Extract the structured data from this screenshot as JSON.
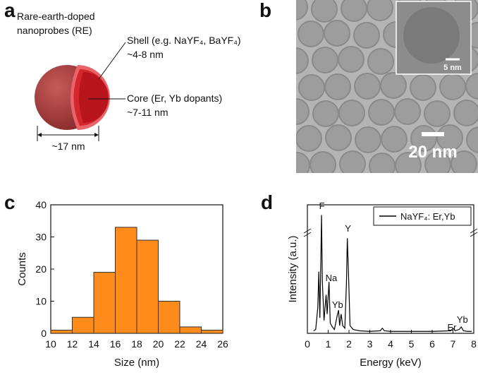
{
  "panels": [
    "a",
    "b",
    "c",
    "d"
  ],
  "diagram": {
    "title_lines": [
      "Rare-earth-doped",
      "nanoprobes (RE)"
    ],
    "shell": [
      "Shell (e.g. NaYF₄, BaYF₄)",
      "~4-8 nm"
    ],
    "core": [
      "Core (Er, Yb dopants)",
      "~7-11 nm"
    ],
    "diameter": "~17 nm"
  },
  "micrograph": {
    "inset_scale": "5 nm",
    "scale": "20 nm"
  },
  "chart_data": [
    {
      "type": "histogram",
      "bins": [
        10,
        12,
        14,
        16,
        18,
        20,
        22,
        24,
        26
      ],
      "values": [
        1,
        5,
        19,
        33,
        29,
        10,
        2,
        1
      ],
      "color": "#ff8c1a",
      "xlabel": "Size (nm)",
      "ylabel": "Counts",
      "xlim": [
        10,
        26
      ],
      "ylim": [
        0,
        40
      ],
      "xticks": [
        10,
        12,
        14,
        16,
        18,
        20,
        22,
        24,
        26
      ],
      "yticks": [
        0,
        10,
        20,
        30,
        40
      ]
    },
    {
      "type": "line",
      "xlabel": "Energy (keV)",
      "ylabel": "Intensity (a.u.)",
      "xlim": [
        0,
        8
      ],
      "ylim": [
        0,
        100
      ],
      "xticks": [
        0,
        1,
        2,
        3,
        4,
        5,
        6,
        7,
        8
      ],
      "legend": "upper right",
      "annotations": [
        "F",
        "Na",
        "Y",
        "Yb",
        "Er",
        "Yb"
      ],
      "x": [
        0.3,
        0.4,
        0.5,
        0.55,
        0.6,
        0.65,
        0.68,
        0.72,
        0.8,
        0.9,
        0.95,
        1.04,
        1.1,
        1.2,
        1.3,
        1.45,
        1.5,
        1.55,
        1.62,
        1.7,
        1.8,
        1.88,
        1.92,
        1.97,
        2.05,
        2.2,
        2.5,
        3,
        3.5,
        3.6,
        3.7,
        4,
        5,
        6,
        6.9,
        7.0,
        7.1,
        7.3,
        7.4,
        7.5,
        7.7,
        7.9
      ],
      "series": [
        {
          "name": "NaYF₄: Er,Yb",
          "color": "#000000",
          "values": [
            2,
            3,
            20,
            48,
            12,
            60,
            92,
            40,
            10,
            30,
            15,
            40,
            8,
            5,
            3,
            15,
            18,
            6,
            15,
            6,
            4,
            40,
            74,
            50,
            6,
            3,
            2,
            1.5,
            2,
            4,
            2,
            1.5,
            1.5,
            1.5,
            2,
            4,
            2,
            3,
            5,
            2,
            1.5,
            1.5
          ]
        }
      ]
    }
  ]
}
